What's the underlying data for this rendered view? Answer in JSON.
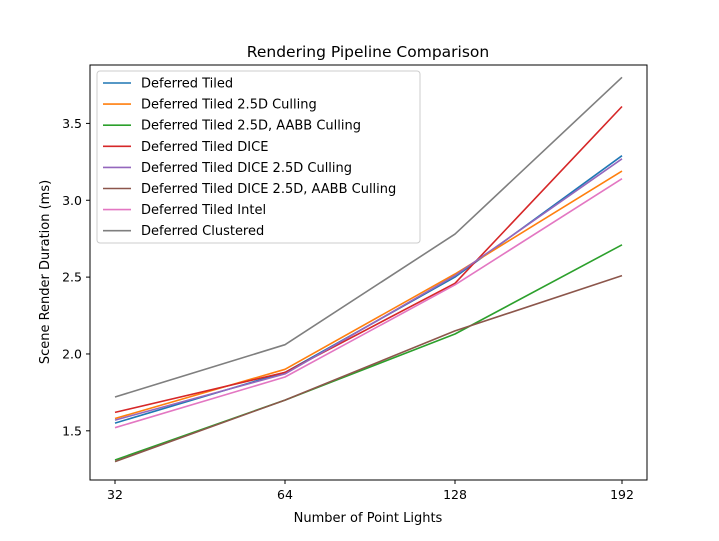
{
  "chart_data": {
    "type": "line",
    "title": "Rendering Pipeline Comparison",
    "xlabel": "Number of Point Lights",
    "ylabel": "Scene Render Duration (ms)",
    "x": [
      32,
      64,
      128,
      192
    ],
    "x_tick_labels": [
      "32",
      "64",
      "128",
      "192"
    ],
    "y_ticks": [
      1.5,
      2.0,
      2.5,
      3.0,
      3.5
    ],
    "y_tick_labels": [
      "1.5",
      "2.0",
      "2.5",
      "3.0",
      "3.5"
    ],
    "ylim": [
      1.18,
      3.88
    ],
    "grid": false,
    "legend_position": "upper-left",
    "series": [
      {
        "name": "Deferred Tiled",
        "color": "#1f77b4",
        "values": [
          1.55,
          1.88,
          2.5,
          3.29
        ]
      },
      {
        "name": "Deferred Tiled 2.5D Culling",
        "color": "#ff7f0e",
        "values": [
          1.58,
          1.9,
          2.52,
          3.19
        ]
      },
      {
        "name": "Deferred Tiled 2.5D, AABB Culling",
        "color": "#2ca02c",
        "values": [
          1.31,
          1.7,
          2.13,
          2.71
        ]
      },
      {
        "name": "Deferred Tiled DICE",
        "color": "#d62728",
        "values": [
          1.62,
          1.88,
          2.46,
          3.61
        ]
      },
      {
        "name": "Deferred Tiled DICE 2.5D Culling",
        "color": "#9467bd",
        "values": [
          1.57,
          1.87,
          2.51,
          3.27
        ]
      },
      {
        "name": "Deferred Tiled DICE 2.5D, AABB Culling",
        "color": "#8c564b",
        "values": [
          1.3,
          1.7,
          2.15,
          2.51
        ]
      },
      {
        "name": "Deferred Tiled Intel",
        "color": "#e377c2",
        "values": [
          1.52,
          1.85,
          2.45,
          3.14
        ]
      },
      {
        "name": "Deferred Clustered",
        "color": "#7f7f7f",
        "values": [
          1.72,
          2.06,
          2.78,
          3.8
        ]
      }
    ]
  }
}
